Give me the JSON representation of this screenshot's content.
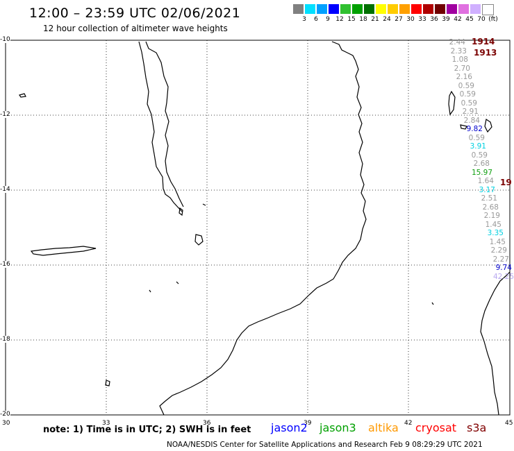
{
  "header": {
    "title": "12:00 – 23:59 UTC 02/06/2021",
    "subtitle": "12 hour collection of altimeter wave heights"
  },
  "color_scale": {
    "labels": [
      "3",
      "6",
      "9",
      "12",
      "15",
      "18",
      "21",
      "24",
      "27",
      "30",
      "33",
      "36",
      "39",
      "42",
      "45",
      "70",
      "(ft)"
    ],
    "colors": [
      "#808080",
      "#00e0ff",
      "#00a0ff",
      "#0000ff",
      "#30c030",
      "#00a000",
      "#007000",
      "#ffff00",
      "#ffcc00",
      "#ffa000",
      "#ff0000",
      "#b00000",
      "#700000",
      "#a000a0",
      "#e070e0",
      "#d0b0ff",
      "#ffffff"
    ]
  },
  "axes": {
    "lat_labels": [
      "-10",
      "-12",
      "-14",
      "-16",
      "-18",
      "-20"
    ],
    "lon_labels": [
      "30",
      "33",
      "36",
      "39",
      "42",
      "45"
    ]
  },
  "readings": [
    {
      "text": "2.44",
      "color": "#999999"
    },
    {
      "text": "2.33",
      "color": "#999999"
    },
    {
      "text": "1.08",
      "color": "#999999"
    },
    {
      "text": "2.70",
      "color": "#999999"
    },
    {
      "text": "2.16",
      "color": "#999999"
    },
    {
      "text": "0.59",
      "color": "#999999"
    },
    {
      "text": "0.59",
      "color": "#999999"
    },
    {
      "text": "0.59",
      "color": "#999999"
    },
    {
      "text": "2.91",
      "color": "#999999"
    },
    {
      "text": "2.84",
      "color": "#999999"
    },
    {
      "text": "9.82",
      "color": "#0000cc"
    },
    {
      "text": "0.59",
      "color": "#999999"
    },
    {
      "text": "3.91",
      "color": "#00d0e0"
    },
    {
      "text": "0.59",
      "color": "#999999"
    },
    {
      "text": "2.68",
      "color": "#999999"
    },
    {
      "text": "15.97",
      "color": "#10a010"
    },
    {
      "text": "1.64",
      "color": "#999999"
    },
    {
      "text": "3.17",
      "color": "#00d0e0"
    },
    {
      "text": "2.51",
      "color": "#999999"
    },
    {
      "text": "2.68",
      "color": "#999999"
    },
    {
      "text": "2.19",
      "color": "#999999"
    },
    {
      "text": "1.45",
      "color": "#999999"
    },
    {
      "text": "3.35",
      "color": "#00d0e0"
    },
    {
      "text": "1.45",
      "color": "#999999"
    },
    {
      "text": "2.29",
      "color": "#999999"
    },
    {
      "text": "2.27",
      "color": "#999999"
    },
    {
      "text": "9.74",
      "color": "#0000cc"
    },
    {
      "text": "42.25",
      "color": "#b8a8f0"
    }
  ],
  "time_tags": [
    "1914",
    "1913",
    "19"
  ],
  "legend": {
    "note": "note: 1) Time is in UTC; 2) SWH is in feet",
    "satellites": [
      {
        "name": "jason2",
        "color": "#0000ff"
      },
      {
        "name": "jason3",
        "color": "#00a000"
      },
      {
        "name": "altika",
        "color": "#ff9900"
      },
      {
        "name": "cryosat",
        "color": "#ff0000"
      },
      {
        "name": "s3a",
        "color": "#800000"
      }
    ]
  },
  "footer": "NOAA/NESDIS Center for Satellite Applications and Research   Feb  9 08:29:29 UTC 2021"
}
